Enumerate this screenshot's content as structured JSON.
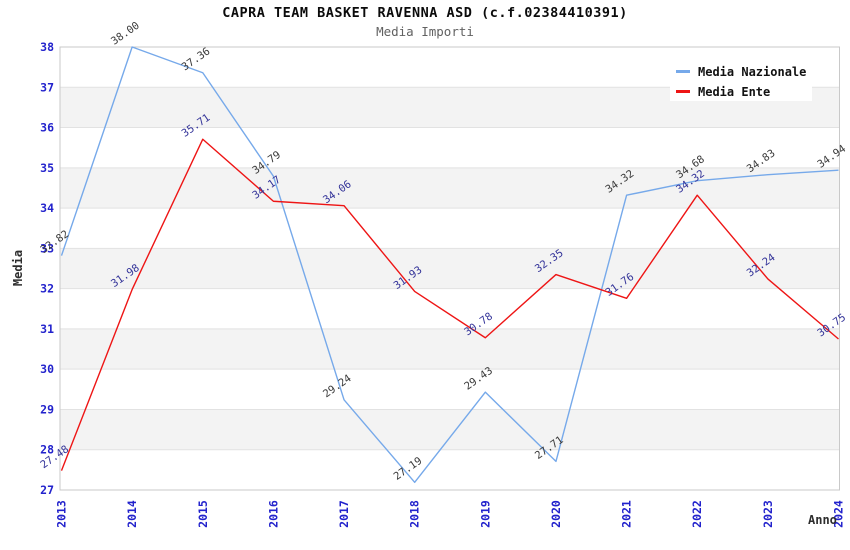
{
  "header": {
    "title": "CAPRA TEAM BASKET RAVENNA ASD (c.f.02384410391)",
    "subtitle": "Media Importi"
  },
  "chart_data": {
    "type": "line",
    "x": [
      2013,
      2014,
      2015,
      2016,
      2017,
      2018,
      2019,
      2020,
      2021,
      2022,
      2023,
      2024
    ],
    "series": [
      {
        "name": "Media Nazionale",
        "color": "#76a9ea",
        "label_color": "#3a3a3a",
        "values": [
          32.82,
          38.0,
          37.36,
          34.79,
          29.24,
          27.19,
          29.43,
          27.71,
          34.32,
          34.68,
          34.83,
          34.94
        ]
      },
      {
        "name": "Media Ente",
        "color": "#ee1515",
        "label_color": "#333399",
        "values": [
          27.48,
          31.98,
          35.71,
          34.17,
          34.06,
          31.93,
          30.78,
          32.35,
          31.76,
          34.32,
          32.24,
          30.75
        ]
      }
    ],
    "xlabel": "Anno",
    "ylabel": "Media",
    "ylim": [
      27,
      38
    ],
    "ytick_step": 1,
    "grid": true,
    "banding": true,
    "legend_position": "top-right",
    "style": {
      "band_color": "#f3f3f3",
      "grid_color": "#e2e2e2",
      "border_color": "#c9c9c9",
      "tick_label_color": "#2222cc",
      "axis_title_color": "#2e2e2e",
      "legend_bg": "#ffffff",
      "legend_text_color": "#111111"
    }
  }
}
